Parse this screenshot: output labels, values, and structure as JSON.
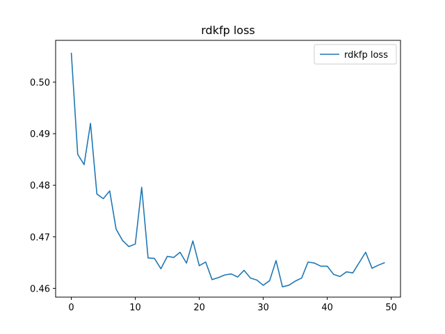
{
  "chart_data": {
    "type": "line",
    "title": "rdkfp loss",
    "xlabel": "",
    "ylabel": "",
    "xlim": [
      -2.45,
      51.45
    ],
    "ylim": [
      0.4583,
      0.5081
    ],
    "xticks": [
      0,
      10,
      20,
      30,
      40,
      50
    ],
    "yticks": [
      0.46,
      0.47,
      0.48,
      0.49,
      0.5
    ],
    "ytick_labels": [
      "0.46",
      "0.47",
      "0.48",
      "0.49",
      "0.50"
    ],
    "xtick_labels": [
      "0",
      "10",
      "20",
      "30",
      "40",
      "50"
    ],
    "grid": false,
    "legend": "top-right",
    "series": [
      {
        "name": "rdkfp loss",
        "color": "#1f77b4",
        "x": [
          0,
          1,
          2,
          3,
          4,
          5,
          6,
          7,
          8,
          9,
          10,
          11,
          12,
          13,
          14,
          15,
          16,
          17,
          18,
          19,
          20,
          21,
          22,
          23,
          24,
          25,
          26,
          27,
          28,
          29,
          30,
          31,
          32,
          33,
          34,
          35,
          36,
          37,
          38,
          39,
          40,
          41,
          42,
          43,
          44,
          45,
          46,
          47,
          48,
          49
        ],
        "values": [
          0.5057,
          0.486,
          0.484,
          0.492,
          0.4783,
          0.4774,
          0.4789,
          0.4715,
          0.4693,
          0.4681,
          0.4686,
          0.4796,
          0.4659,
          0.4658,
          0.4638,
          0.4662,
          0.466,
          0.467,
          0.4649,
          0.4692,
          0.4644,
          0.4651,
          0.4617,
          0.4621,
          0.4626,
          0.4628,
          0.4622,
          0.4635,
          0.462,
          0.4616,
          0.4606,
          0.4615,
          0.4654,
          0.4603,
          0.4606,
          0.4614,
          0.462,
          0.4651,
          0.4649,
          0.4643,
          0.4643,
          0.4627,
          0.4623,
          0.4632,
          0.463,
          0.465,
          0.467,
          0.4639,
          0.4645,
          0.465
        ]
      }
    ]
  }
}
